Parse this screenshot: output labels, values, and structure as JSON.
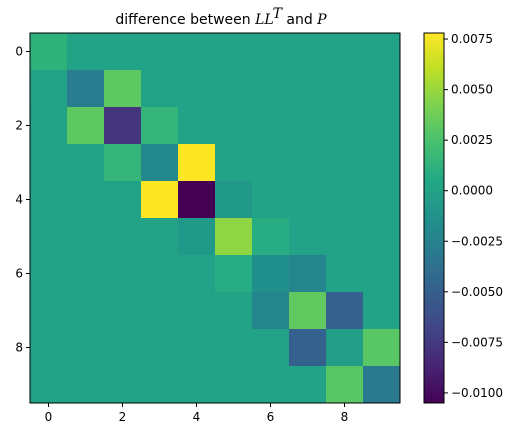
{
  "chart_data": {
    "type": "heatmap",
    "title": {
      "prefix": "difference between ",
      "math1": "LL",
      "superscript": "T",
      "middle": " and ",
      "math2": "P"
    },
    "x_ticks": [
      0,
      2,
      4,
      6,
      8
    ],
    "y_ticks": [
      0,
      2,
      4,
      6,
      8
    ],
    "x_tick_labels": [
      "0",
      "2",
      "4",
      "6",
      "8"
    ],
    "y_tick_labels": [
      "0",
      "2",
      "4",
      "6",
      "8"
    ],
    "rows": 10,
    "cols": 10,
    "vmin": -0.0105,
    "vmax": 0.0078,
    "colormap": "viridis",
    "values": [
      [
        0.0012,
        0.0001,
        0,
        0,
        0,
        0,
        0,
        0,
        0,
        0
      ],
      [
        0.0001,
        -0.0028,
        0.0032,
        0,
        0,
        0,
        0,
        0,
        0,
        0
      ],
      [
        0,
        0.0032,
        -0.0077,
        0.0015,
        0,
        0,
        0,
        0,
        0,
        0
      ],
      [
        0,
        0,
        0.0015,
        -0.0019,
        0.0078,
        0,
        0,
        0,
        0,
        0
      ],
      [
        0,
        0,
        0,
        0.0078,
        -0.0105,
        -0.0007,
        0,
        0,
        0,
        0
      ],
      [
        0,
        0,
        0,
        0,
        -0.0007,
        0.0047,
        0.0008,
        0,
        0,
        0
      ],
      [
        0,
        0,
        0,
        0,
        0,
        0.0008,
        -0.0014,
        -0.0022,
        0,
        0
      ],
      [
        0,
        0,
        0,
        0,
        0,
        0,
        -0.0022,
        0.0033,
        -0.0049,
        0
      ],
      [
        0,
        0,
        0,
        0,
        0,
        0,
        0,
        -0.0049,
        -0.0003,
        0.003
      ],
      [
        0,
        0,
        0,
        0,
        0,
        0,
        0,
        0,
        0.003,
        -0.0031
      ]
    ],
    "colorbar": {
      "ticks": [
        0.0075,
        0.005,
        0.0025,
        0.0,
        -0.0025,
        -0.005,
        -0.0075,
        -0.01
      ],
      "tick_labels": [
        "0.0075",
        "0.0050",
        "0.0025",
        "0.0000",
        "−0.0025",
        "−0.0050",
        "−0.0075",
        "−0.0100"
      ]
    }
  }
}
